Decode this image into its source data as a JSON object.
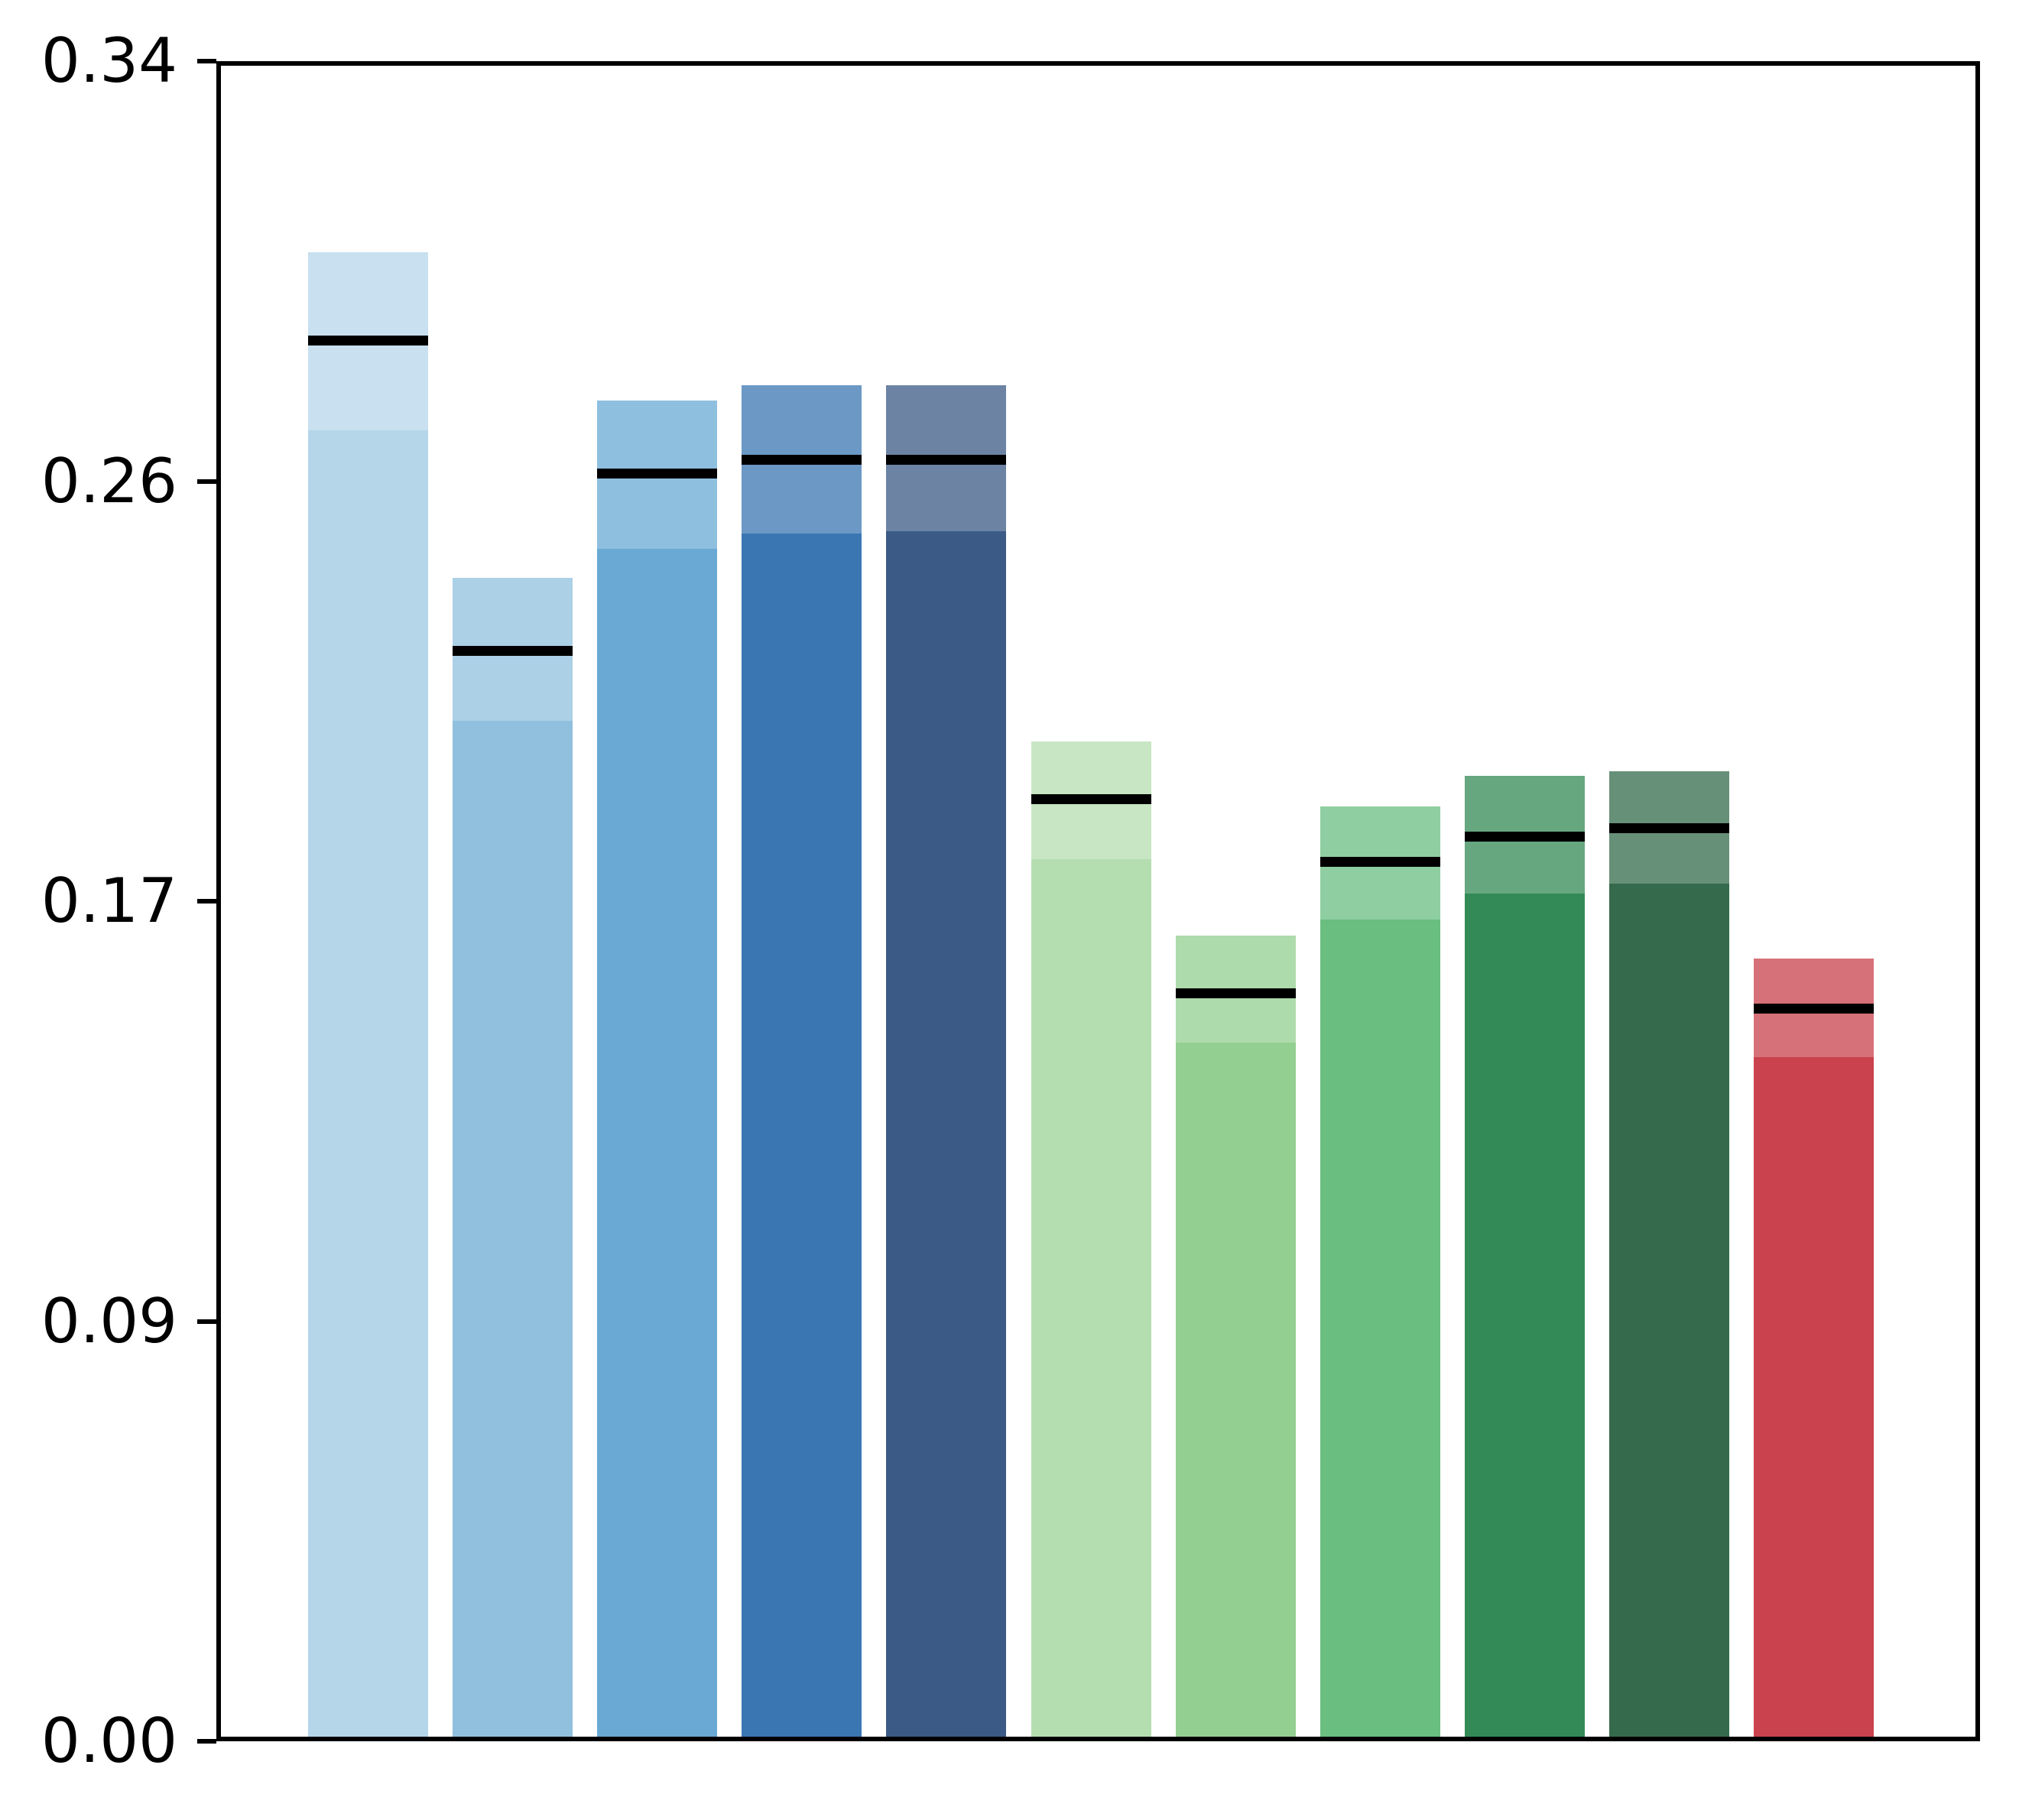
{
  "chart_data": {
    "type": "bar",
    "title": "",
    "xlabel": "",
    "ylabel": "",
    "x_tick_labels": [],
    "ylim": [
      0,
      0.34
    ],
    "grid": false,
    "legend": null,
    "background_color": "#ffffff",
    "frame_color": "#000000",
    "mean_line_color": "#000000",
    "yticks": [
      {
        "value": 0.0,
        "label": "0.00"
      },
      {
        "value": 0.085,
        "label": "0.09"
      },
      {
        "value": 0.17,
        "label": "0.17"
      },
      {
        "value": 0.255,
        "label": "0.26"
      },
      {
        "value": 0.34,
        "label": "0.34"
      }
    ],
    "bar_description": "Each bar: solid-colored bar up to 'low', lighter translucent band from 'low' to 'high', black horizontal line at 'mean'.",
    "bars": [
      {
        "index": 1,
        "group": "blue",
        "low": 0.2653,
        "mean": 0.2835,
        "high": 0.3013,
        "color_solid": "#B5D5E9",
        "color_band": "#C8E0EF"
      },
      {
        "index": 2,
        "group": "blue",
        "low": 0.2065,
        "mean": 0.2206,
        "high": 0.2354,
        "color_solid": "#90C0DE",
        "color_band": "#ACD0E6"
      },
      {
        "index": 3,
        "group": "blue",
        "low": 0.2413,
        "mean": 0.2566,
        "high": 0.2713,
        "color_solid": "#69A9D4",
        "color_band": "#8FBFDF"
      },
      {
        "index": 4,
        "group": "blue",
        "low": 0.2444,
        "mean": 0.2594,
        "high": 0.2744,
        "color_solid": "#3A76B2",
        "color_band": "#6B98C5"
      },
      {
        "index": 5,
        "group": "blue",
        "low": 0.2449,
        "mean": 0.2594,
        "high": 0.2744,
        "color_solid": "#3B5A86",
        "color_band": "#6C83A4"
      },
      {
        "index": 6,
        "group": "green",
        "low": 0.1785,
        "mean": 0.1906,
        "high": 0.2023,
        "color_solid": "#B5DEB0",
        "color_band": "#C8E6C4"
      },
      {
        "index": 7,
        "group": "green",
        "low": 0.1414,
        "mean": 0.1514,
        "high": 0.163,
        "color_solid": "#93CF90",
        "color_band": "#AEDBAC"
      },
      {
        "index": 8,
        "group": "green",
        "low": 0.1663,
        "mean": 0.1779,
        "high": 0.1892,
        "color_solid": "#6ABE80",
        "color_band": "#8FCEA0"
      },
      {
        "index": 9,
        "group": "green",
        "low": 0.1716,
        "mean": 0.1831,
        "high": 0.1954,
        "color_solid": "#338A56",
        "color_band": "#66A780"
      },
      {
        "index": 10,
        "group": "green",
        "low": 0.1736,
        "mean": 0.1848,
        "high": 0.1963,
        "color_solid": "#356B4C",
        "color_band": "#679078"
      },
      {
        "index": 11,
        "group": "red",
        "low": 0.1384,
        "mean": 0.1482,
        "high": 0.1584,
        "color_solid": "#CA424D",
        "color_band": "#D77179"
      }
    ]
  }
}
